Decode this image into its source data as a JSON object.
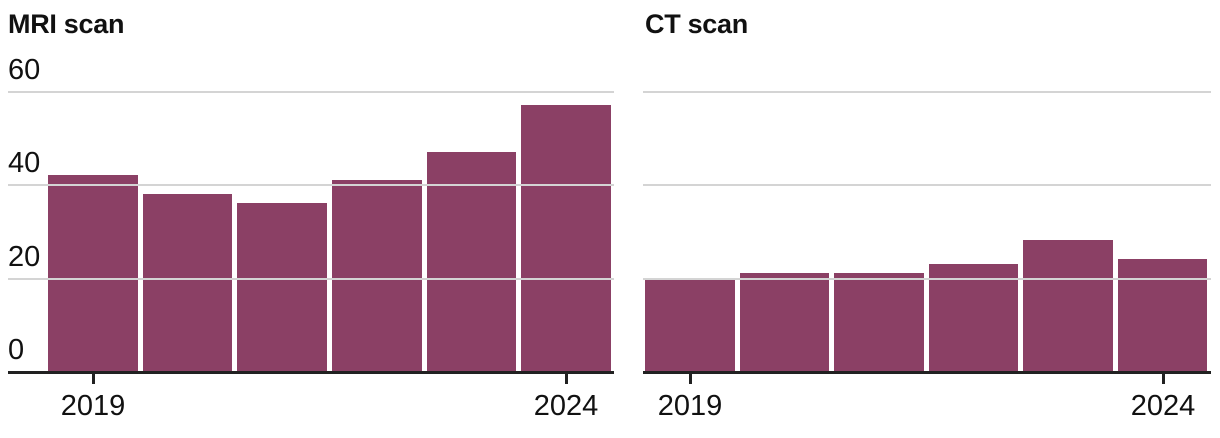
{
  "page": {
    "background_color": "#ffffff",
    "text_color": "#111111"
  },
  "chart_data": [
    {
      "type": "bar",
      "title": "MRI scan",
      "categories": [
        "2019",
        "2020",
        "2021",
        "2022",
        "2023",
        "2024"
      ],
      "values": [
        42,
        38,
        36,
        41,
        47,
        57
      ],
      "xlabel": "",
      "ylabel": "",
      "ylim": [
        0,
        60
      ],
      "yticks": [
        0,
        20,
        40,
        60
      ],
      "ytick_labels_visible": true,
      "xtick_labels": [
        "2019",
        "2024"
      ],
      "grid": "horizontal",
      "legend": "none",
      "bar_color": "#8B4065",
      "gridline_color": "#D4D4D4",
      "axis_color": "#212121"
    },
    {
      "type": "bar",
      "title": "CT scan",
      "categories": [
        "2019",
        "2020",
        "2021",
        "2022",
        "2023",
        "2024"
      ],
      "values": [
        20,
        21,
        21,
        23,
        28,
        24
      ],
      "xlabel": "",
      "ylabel": "",
      "ylim": [
        0,
        60
      ],
      "yticks": [
        0,
        20,
        40,
        60
      ],
      "ytick_labels_visible": false,
      "xtick_labels": [
        "2019",
        "2024"
      ],
      "grid": "horizontal",
      "legend": "none",
      "bar_color": "#8B4065",
      "gridline_color": "#D4D4D4",
      "axis_color": "#212121"
    }
  ]
}
